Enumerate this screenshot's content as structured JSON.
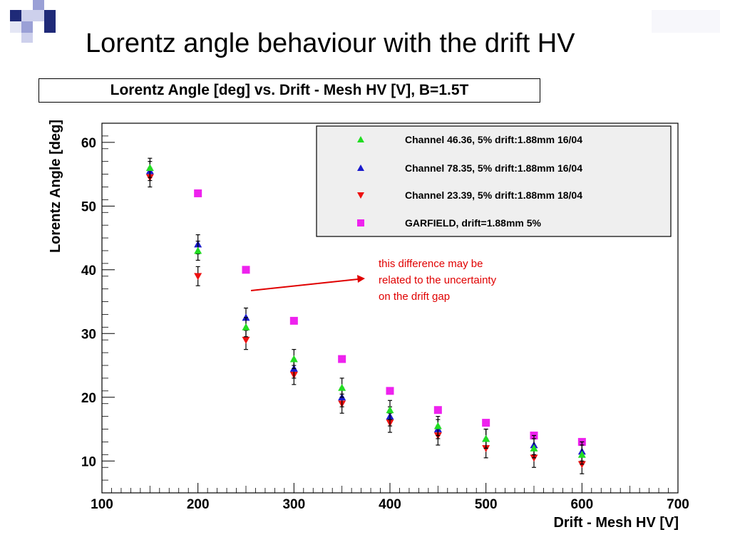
{
  "slide": {
    "title": "Lorentz angle behaviour with the drift HV"
  },
  "colors": {
    "deco_dark": "#1f2a78",
    "deco_mid": "#9aa0d6",
    "deco_light": "#cdd0ec",
    "annotation": "#e00000",
    "legend_bg": "#efefef"
  },
  "chart_data": {
    "type": "scatter",
    "title": "Lorentz Angle [deg] vs. Drift - Mesh HV [V], B=1.5T",
    "xlabel": "Drift - Mesh HV [V]",
    "ylabel": "Lorentz Angle [deg]",
    "xlim": [
      100,
      700
    ],
    "ylim": [
      5,
      63
    ],
    "xticks": [
      100,
      200,
      300,
      400,
      500,
      600,
      700
    ],
    "yticks": [
      10,
      20,
      30,
      40,
      50,
      60
    ],
    "grid": false,
    "legend_position": "top-right",
    "series": [
      {
        "name": "Channel 46.36, 5% drift:1.88mm 16/04",
        "color": "#22dd22",
        "marker": "triangle-up",
        "x": [
          150,
          200,
          250,
          300,
          350,
          400,
          450,
          500,
          550,
          600
        ],
        "y": [
          56,
          43,
          31,
          26,
          21.5,
          18,
          15.5,
          13.5,
          12,
          11
        ],
        "err": [
          1.5,
          1.5,
          1.5,
          1.5,
          1.5,
          1.5,
          1.5,
          1.5,
          1.5,
          1.5
        ]
      },
      {
        "name": "Channel 78.35, 5% drift:1.88mm 16/04",
        "color": "#1a1acc",
        "marker": "triangle-up",
        "x": [
          150,
          200,
          250,
          300,
          350,
          400,
          450,
          500,
          550,
          600
        ],
        "y": [
          55.5,
          44,
          32.5,
          24.5,
          20,
          17,
          15,
          13.5,
          12.5,
          11.5
        ],
        "err": [
          1.5,
          1.5,
          1.5,
          1.5,
          1.5,
          1.5,
          1.5,
          1.5,
          1.5,
          1.5
        ]
      },
      {
        "name": "Channel 23.39, 5% drift:1.88mm 18/04",
        "color": "#ee1111",
        "marker": "triangle-down",
        "x": [
          150,
          200,
          250,
          300,
          350,
          400,
          450,
          500,
          550,
          600
        ],
        "y": [
          54.5,
          39,
          29,
          23.5,
          19,
          16,
          14,
          12,
          10.5,
          9.5
        ],
        "err": [
          1.5,
          1.5,
          1.5,
          1.5,
          1.5,
          1.5,
          1.5,
          1.5,
          1.5,
          1.5
        ]
      },
      {
        "name": "GARFIELD, drift=1.88mm 5%",
        "color": "#ee22ee",
        "marker": "square",
        "x": [
          200,
          250,
          300,
          350,
          400,
          450,
          500,
          550,
          600
        ],
        "y": [
          52,
          40,
          32,
          26,
          21,
          18,
          16,
          14,
          13
        ]
      }
    ],
    "annotations": [
      {
        "lines": [
          "this difference may be",
          "related to the uncertainty",
          "on the drift gap"
        ],
        "color": "#e00000"
      }
    ]
  }
}
